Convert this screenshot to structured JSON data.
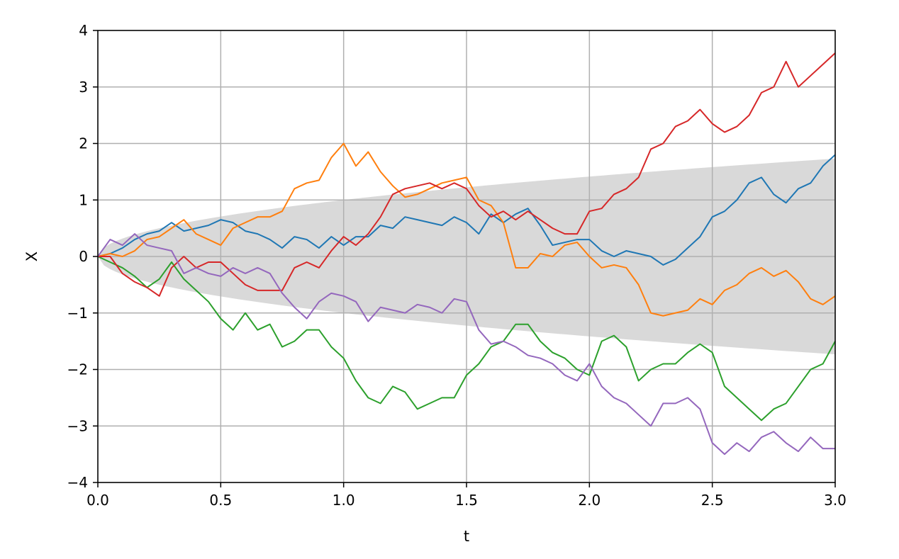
{
  "chart_data": {
    "type": "line",
    "title": "",
    "xlabel": "t",
    "ylabel": "X",
    "xlim": [
      0.0,
      3.0
    ],
    "ylim": [
      -4,
      4
    ],
    "grid": true,
    "xticks": [
      0.0,
      0.5,
      1.0,
      1.5,
      2.0,
      2.5,
      3.0
    ],
    "xtick_labels": [
      "0.0",
      "0.5",
      "1.0",
      "1.5",
      "2.0",
      "2.5",
      "3.0"
    ],
    "yticks": [
      -4,
      -3,
      -2,
      -1,
      0,
      1,
      2,
      3,
      4
    ],
    "ytick_labels": [
      "−4",
      "−3",
      "−2",
      "−1",
      "0",
      "1",
      "2",
      "3",
      "4"
    ],
    "band": {
      "description": "shaded region between -sqrt(t) and +sqrt(t)",
      "color": "#d9d9d9",
      "lower": "-sqrt(t)",
      "upper": "sqrt(t)"
    },
    "series": [
      {
        "color": "#1f77b4",
        "x": [
          0,
          0.05,
          0.1,
          0.15,
          0.2,
          0.25,
          0.3,
          0.35,
          0.4,
          0.45,
          0.5,
          0.55,
          0.6,
          0.65,
          0.7,
          0.75,
          0.8,
          0.85,
          0.9,
          0.95,
          1.0,
          1.05,
          1.1,
          1.15,
          1.2,
          1.25,
          1.3,
          1.35,
          1.4,
          1.45,
          1.5,
          1.55,
          1.6,
          1.65,
          1.7,
          1.75,
          1.8,
          1.85,
          1.9,
          1.95,
          2.0,
          2.05,
          2.1,
          2.15,
          2.2,
          2.25,
          2.3,
          2.35,
          2.4,
          2.45,
          2.5,
          2.55,
          2.6,
          2.65,
          2.7,
          2.75,
          2.8,
          2.85,
          2.9,
          2.95,
          3.0
        ],
        "y": [
          0,
          0.05,
          0.15,
          0.3,
          0.4,
          0.45,
          0.6,
          0.45,
          0.5,
          0.55,
          0.65,
          0.6,
          0.45,
          0.4,
          0.3,
          0.15,
          0.35,
          0.3,
          0.15,
          0.35,
          0.2,
          0.35,
          0.35,
          0.55,
          0.5,
          0.7,
          0.65,
          0.6,
          0.55,
          0.7,
          0.6,
          0.4,
          0.75,
          0.6,
          0.75,
          0.85,
          0.55,
          0.2,
          0.25,
          0.3,
          0.3,
          0.1,
          0.0,
          0.1,
          0.05,
          0.0,
          -0.15,
          -0.05,
          0.15,
          0.35,
          0.7,
          0.8,
          1.0,
          1.3,
          1.4,
          1.1,
          0.95,
          1.2,
          1.3,
          1.6,
          1.8
        ]
      },
      {
        "color": "#ff7f0e",
        "x": [
          0,
          0.05,
          0.1,
          0.15,
          0.2,
          0.25,
          0.3,
          0.35,
          0.4,
          0.45,
          0.5,
          0.55,
          0.6,
          0.65,
          0.7,
          0.75,
          0.8,
          0.85,
          0.9,
          0.95,
          1.0,
          1.05,
          1.1,
          1.15,
          1.2,
          1.25,
          1.3,
          1.35,
          1.4,
          1.45,
          1.5,
          1.55,
          1.6,
          1.65,
          1.7,
          1.75,
          1.8,
          1.85,
          1.9,
          1.95,
          2.0,
          2.05,
          2.1,
          2.15,
          2.2,
          2.25,
          2.3,
          2.35,
          2.4,
          2.45,
          2.5,
          2.55,
          2.6,
          2.65,
          2.7,
          2.75,
          2.8,
          2.85,
          2.9,
          2.95,
          3.0
        ],
        "y": [
          0,
          0.05,
          0.0,
          0.1,
          0.3,
          0.35,
          0.5,
          0.65,
          0.4,
          0.3,
          0.2,
          0.5,
          0.6,
          0.7,
          0.7,
          0.8,
          1.2,
          1.3,
          1.35,
          1.75,
          2.0,
          1.6,
          1.85,
          1.5,
          1.25,
          1.05,
          1.1,
          1.2,
          1.3,
          1.35,
          1.4,
          1.0,
          0.9,
          0.6,
          -0.2,
          -0.2,
          0.05,
          0.0,
          0.2,
          0.25,
          0.0,
          -0.2,
          -0.15,
          -0.2,
          -0.5,
          -1.0,
          -1.05,
          -1.0,
          -0.95,
          -0.75,
          -0.85,
          -0.6,
          -0.5,
          -0.3,
          -0.2,
          -0.35,
          -0.25,
          -0.45,
          -0.75,
          -0.85,
          -0.7
        ]
      },
      {
        "color": "#2ca02c",
        "x": [
          0,
          0.05,
          0.1,
          0.15,
          0.2,
          0.25,
          0.3,
          0.35,
          0.4,
          0.45,
          0.5,
          0.55,
          0.6,
          0.65,
          0.7,
          0.75,
          0.8,
          0.85,
          0.9,
          0.95,
          1.0,
          1.05,
          1.1,
          1.15,
          1.2,
          1.25,
          1.3,
          1.35,
          1.4,
          1.45,
          1.5,
          1.55,
          1.6,
          1.65,
          1.7,
          1.75,
          1.8,
          1.85,
          1.9,
          1.95,
          2.0,
          2.05,
          2.1,
          2.15,
          2.2,
          2.25,
          2.3,
          2.35,
          2.4,
          2.45,
          2.5,
          2.55,
          2.6,
          2.65,
          2.7,
          2.75,
          2.8,
          2.85,
          2.9,
          2.95,
          3.0
        ],
        "y": [
          0,
          -0.1,
          -0.2,
          -0.35,
          -0.55,
          -0.4,
          -0.1,
          -0.4,
          -0.6,
          -0.8,
          -1.1,
          -1.3,
          -1.0,
          -1.3,
          -1.2,
          -1.6,
          -1.5,
          -1.3,
          -1.3,
          -1.6,
          -1.8,
          -2.2,
          -2.5,
          -2.6,
          -2.3,
          -2.4,
          -2.7,
          -2.6,
          -2.5,
          -2.5,
          -2.1,
          -1.9,
          -1.6,
          -1.5,
          -1.2,
          -1.2,
          -1.5,
          -1.7,
          -1.8,
          -2.0,
          -2.1,
          -1.5,
          -1.4,
          -1.6,
          -2.2,
          -2.0,
          -1.9,
          -1.9,
          -1.7,
          -1.55,
          -1.7,
          -2.3,
          -2.5,
          -2.7,
          -2.9,
          -2.7,
          -2.6,
          -2.3,
          -2.0,
          -1.9,
          -1.5
        ]
      },
      {
        "color": "#d62728",
        "x": [
          0,
          0.05,
          0.1,
          0.15,
          0.2,
          0.25,
          0.3,
          0.35,
          0.4,
          0.45,
          0.5,
          0.55,
          0.6,
          0.65,
          0.7,
          0.75,
          0.8,
          0.85,
          0.9,
          0.95,
          1.0,
          1.05,
          1.1,
          1.15,
          1.2,
          1.25,
          1.3,
          1.35,
          1.4,
          1.45,
          1.5,
          1.55,
          1.6,
          1.65,
          1.7,
          1.75,
          1.8,
          1.85,
          1.9,
          1.95,
          2.0,
          2.05,
          2.1,
          2.15,
          2.2,
          2.25,
          2.3,
          2.35,
          2.4,
          2.45,
          2.5,
          2.55,
          2.6,
          2.65,
          2.7,
          2.75,
          2.8,
          2.85,
          2.9,
          2.95,
          3.0
        ],
        "y": [
          0,
          0.0,
          -0.3,
          -0.45,
          -0.55,
          -0.7,
          -0.2,
          0.0,
          -0.2,
          -0.1,
          -0.1,
          -0.3,
          -0.5,
          -0.6,
          -0.6,
          -0.6,
          -0.2,
          -0.1,
          -0.2,
          0.1,
          0.35,
          0.2,
          0.4,
          0.7,
          1.1,
          1.2,
          1.25,
          1.3,
          1.2,
          1.3,
          1.2,
          0.9,
          0.7,
          0.8,
          0.65,
          0.8,
          0.65,
          0.5,
          0.4,
          0.4,
          0.8,
          0.85,
          1.1,
          1.2,
          1.4,
          1.9,
          2.0,
          2.3,
          2.4,
          2.6,
          2.35,
          2.2,
          2.3,
          2.5,
          2.9,
          3.0,
          3.45,
          3.0,
          3.2,
          3.4,
          3.6
        ]
      },
      {
        "color": "#9467bd",
        "x": [
          0,
          0.05,
          0.1,
          0.15,
          0.2,
          0.25,
          0.3,
          0.35,
          0.4,
          0.45,
          0.5,
          0.55,
          0.6,
          0.65,
          0.7,
          0.75,
          0.8,
          0.85,
          0.9,
          0.95,
          1.0,
          1.05,
          1.1,
          1.15,
          1.2,
          1.25,
          1.3,
          1.35,
          1.4,
          1.45,
          1.5,
          1.55,
          1.6,
          1.65,
          1.7,
          1.75,
          1.8,
          1.85,
          1.9,
          1.95,
          2.0,
          2.05,
          2.1,
          2.15,
          2.2,
          2.25,
          2.3,
          2.35,
          2.4,
          2.45,
          2.5,
          2.55,
          2.6,
          2.65,
          2.7,
          2.75,
          2.8,
          2.85,
          2.9,
          2.95,
          3.0
        ],
        "y": [
          0,
          0.3,
          0.2,
          0.4,
          0.2,
          0.15,
          0.1,
          -0.3,
          -0.2,
          -0.3,
          -0.35,
          -0.2,
          -0.3,
          -0.2,
          -0.3,
          -0.65,
          -0.9,
          -1.1,
          -0.8,
          -0.65,
          -0.7,
          -0.8,
          -1.15,
          -0.9,
          -0.95,
          -1.0,
          -0.85,
          -0.9,
          -1.0,
          -0.75,
          -0.8,
          -1.3,
          -1.55,
          -1.5,
          -1.6,
          -1.75,
          -1.8,
          -1.9,
          -2.1,
          -2.2,
          -1.9,
          -2.3,
          -2.5,
          -2.6,
          -2.8,
          -3.0,
          -2.6,
          -2.6,
          -2.5,
          -2.7,
          -3.3,
          -3.5,
          -3.3,
          -3.45,
          -3.2,
          -3.1,
          -3.3,
          -3.45,
          -3.2,
          -3.4,
          -3.4
        ]
      }
    ]
  }
}
